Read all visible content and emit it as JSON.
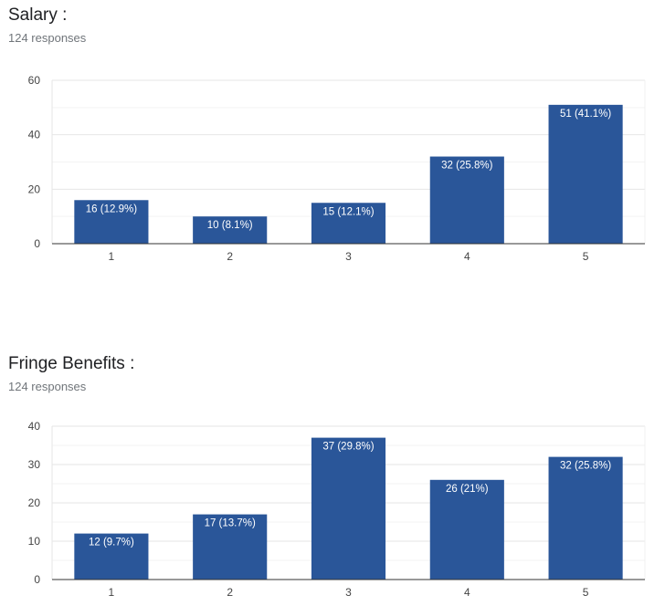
{
  "charts": [
    {
      "title": "Salary :",
      "subtitle": "124 responses",
      "chart_data": {
        "type": "bar",
        "categories": [
          "1",
          "2",
          "3",
          "4",
          "5"
        ],
        "values": [
          16,
          10,
          15,
          32,
          51
        ],
        "labels": [
          "16 (12.9%)",
          "10 (8.1%)",
          "15 (12.1%)",
          "32 (25.8%)",
          "51 (41.1%)"
        ],
        "ylim": [
          0,
          60
        ],
        "yticks": [
          0,
          20,
          40,
          60
        ],
        "xlabel": "",
        "ylabel": "",
        "grid": true,
        "color": "#2a5699"
      }
    },
    {
      "title": "Fringe Benefits :",
      "subtitle": "124 responses",
      "chart_data": {
        "type": "bar",
        "categories": [
          "1",
          "2",
          "3",
          "4",
          "5"
        ],
        "values": [
          12,
          17,
          37,
          26,
          32
        ],
        "labels": [
          "12 (9.7%)",
          "17 (13.7%)",
          "37 (29.8%)",
          "26 (21%)",
          "32 (25.8%)"
        ],
        "ylim": [
          0,
          40
        ],
        "yticks": [
          0,
          10,
          20,
          30,
          40
        ],
        "xlabel": "",
        "ylabel": "",
        "grid": true,
        "color": "#2a5699"
      }
    }
  ]
}
